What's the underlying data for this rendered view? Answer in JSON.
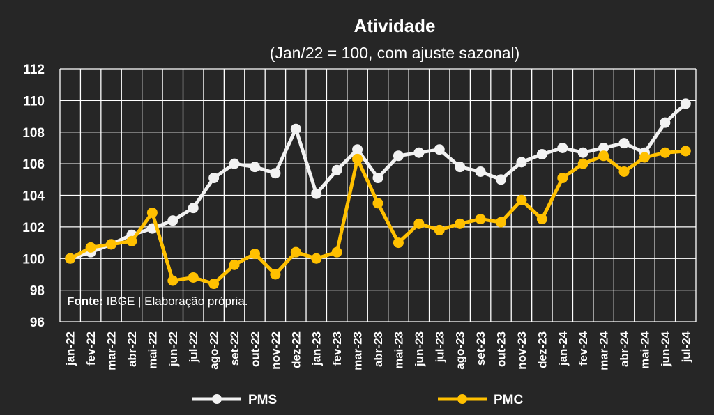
{
  "chart_data": {
    "type": "line",
    "title": "Atividade",
    "subtitle": "(Jan/22 = 100, com ajuste sazonal)",
    "source_label": "Fonte:",
    "source_text": " IBGE | Elaboração própria.",
    "ylim": [
      96,
      112
    ],
    "yticks": [
      "96",
      "98",
      "100",
      "102",
      "104",
      "106",
      "108",
      "110",
      "112"
    ],
    "grid": true,
    "legend_position": "bottom",
    "categories": [
      "jan-22",
      "fev-22",
      "mar-22",
      "abr-22",
      "mai-22",
      "jun-22",
      "jul-22",
      "ago-22",
      "set-22",
      "out-22",
      "nov-22",
      "dez-22",
      "jan-23",
      "fev-23",
      "mar-23",
      "abr-23",
      "mai-23",
      "jun-23",
      "jul-23",
      "ago-23",
      "set-23",
      "out-23",
      "nov-23",
      "dez-23",
      "jan-24",
      "fev-24",
      "mar-24",
      "abr-24",
      "mai-24",
      "jun-24",
      "jul-24"
    ],
    "series": [
      {
        "name": "PMS",
        "color": "#f2f2f2",
        "values": [
          100.0,
          100.4,
          100.9,
          101.5,
          101.9,
          102.4,
          103.2,
          105.1,
          106.0,
          105.8,
          105.4,
          108.2,
          104.1,
          105.6,
          106.9,
          105.1,
          106.5,
          106.7,
          106.9,
          105.8,
          105.5,
          105.0,
          106.1,
          106.6,
          107.0,
          106.7,
          107.0,
          107.3,
          106.7,
          108.6,
          109.8
        ]
      },
      {
        "name": "PMC",
        "color": "#ffc000",
        "values": [
          100.0,
          100.7,
          100.9,
          101.1,
          102.9,
          98.6,
          98.8,
          98.4,
          99.6,
          100.3,
          99.0,
          100.4,
          100.0,
          100.4,
          106.3,
          103.5,
          101.0,
          102.2,
          101.8,
          102.2,
          102.5,
          102.3,
          103.7,
          102.5,
          105.1,
          106.0,
          106.5,
          105.5,
          106.4,
          106.7,
          106.8
        ]
      }
    ]
  }
}
